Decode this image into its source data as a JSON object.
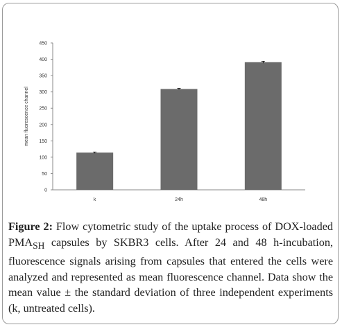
{
  "chart_data": {
    "type": "bar",
    "categories": [
      "k",
      "24h",
      "48h"
    ],
    "values": [
      114,
      309,
      391
    ],
    "errors": [
      2,
      2,
      3
    ],
    "ylabel": "mean fluorescence channel",
    "xlabel": "",
    "ylim": [
      0,
      450
    ],
    "yticks": [
      0,
      50,
      100,
      150,
      200,
      250,
      300,
      350,
      400,
      450
    ],
    "grid": false,
    "bar_color": "#6b6b6b"
  },
  "caption": {
    "label": "Figure 2:",
    "text_before_sub": " Flow cytometric study of the uptake process of DOX-loaded PMA",
    "subscript": "SH",
    "text_after_sub": " capsules by SKBR3 cells. After 24 and 48 h-incubation, fluorescence signals arising from capsules that entered the cells were analyzed and represented as mean fluorescence channel. Data show the mean value ± the standard deviation of three independent experiments (k, untreated cells)."
  }
}
